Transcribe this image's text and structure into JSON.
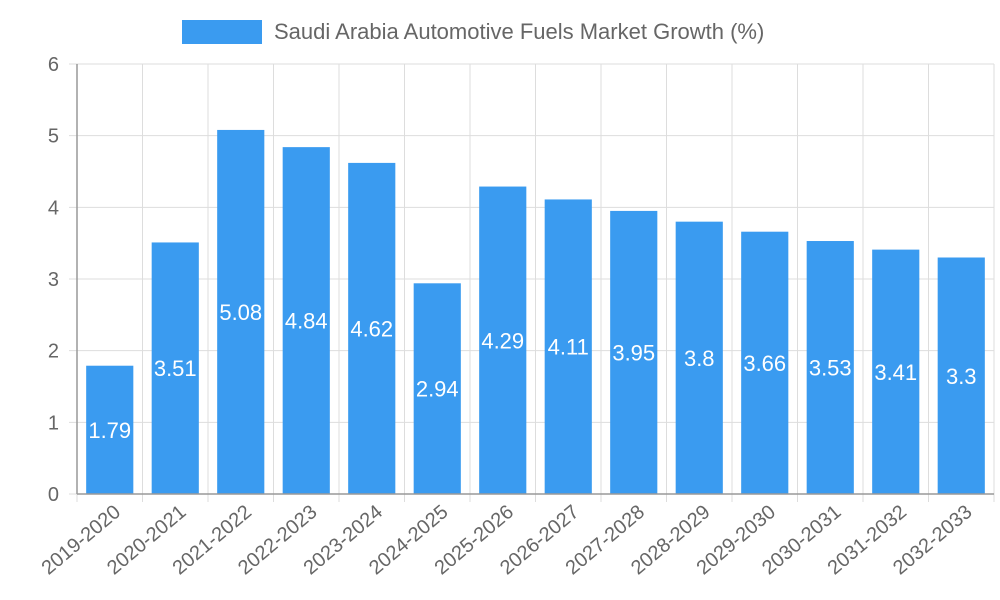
{
  "chart_data": {
    "type": "bar",
    "title": "",
    "legend": {
      "label": "Saudi Arabia Automotive Fuels Market Growth (%)",
      "position": "top-center"
    },
    "categories": [
      "2019-2020",
      "2020-2021",
      "2021-2022",
      "2022-2023",
      "2023-2024",
      "2024-2025",
      "2025-2026",
      "2026-2027",
      "2027-2028",
      "2028-2029",
      "2029-2030",
      "2030-2031",
      "2031-2032",
      "2032-2033"
    ],
    "series": [
      {
        "name": "Saudi Arabia Automotive Fuels Market Growth (%)",
        "values": [
          1.79,
          3.51,
          5.08,
          4.84,
          4.62,
          2.94,
          4.29,
          4.11,
          3.95,
          3.8,
          3.66,
          3.53,
          3.41,
          3.3
        ],
        "color": "#3a9bf0"
      }
    ],
    "yticks": [
      0,
      1,
      2,
      3,
      4,
      5,
      6
    ],
    "ylim": [
      0,
      6
    ],
    "xlabel": "",
    "ylabel": "",
    "grid": true,
    "colors": {
      "grid": "#dddddd",
      "axis": "#999999",
      "tick_text": "#666666",
      "data_label": "#ffffff",
      "legend_text": "#666666"
    }
  }
}
